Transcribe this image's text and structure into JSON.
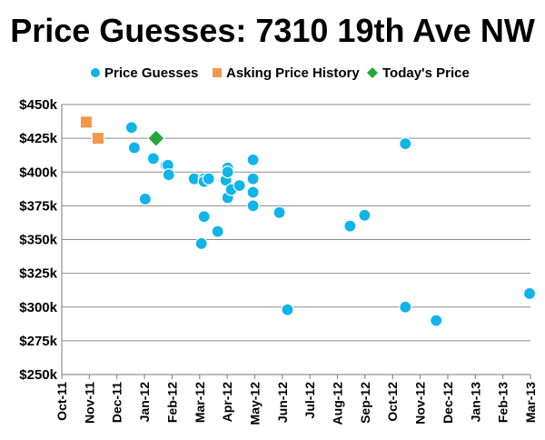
{
  "chart_data": {
    "type": "scatter",
    "title": "Price Guesses: 7310 19th Ave NW",
    "xlabel": "",
    "ylabel": "",
    "x_axis": {
      "type": "date",
      "min": "2011-10-01",
      "max": "2013-03-01",
      "tick_labels": [
        "Oct-11",
        "Nov-11",
        "Dec-11",
        "Jan-12",
        "Feb-12",
        "Mar-12",
        "Apr-12",
        "May-12",
        "Jun-12",
        "Jul-12",
        "Aug-12",
        "Sep-12",
        "Oct-12",
        "Nov-12",
        "Dec-12",
        "Jan-13",
        "Feb-13",
        "Mar-13"
      ]
    },
    "y_axis": {
      "min": 250000,
      "max": 450000,
      "step": 25000,
      "tick_labels": [
        "$250k",
        "$275k",
        "$300k",
        "$325k",
        "$350k",
        "$375k",
        "$400k",
        "$425k",
        "$450k"
      ]
    },
    "grid": {
      "horizontal": true,
      "vertical": false
    },
    "legend_position": "top",
    "series": [
      {
        "name": "Price Guesses",
        "marker": "circle",
        "color": "#0fb4e8",
        "points": [
          {
            "x": "2011-12-17",
            "y": 433000
          },
          {
            "x": "2011-12-20",
            "y": 418000
          },
          {
            "x": "2012-01-01",
            "y": 380000
          },
          {
            "x": "2012-01-10",
            "y": 410000
          },
          {
            "x": "2012-01-24",
            "y": 405000
          },
          {
            "x": "2012-01-26",
            "y": 405000
          },
          {
            "x": "2012-01-27",
            "y": 398000
          },
          {
            "x": "2012-02-24",
            "y": 395000
          },
          {
            "x": "2012-03-03",
            "y": 347000
          },
          {
            "x": "2012-03-06",
            "y": 367000
          },
          {
            "x": "2012-03-06",
            "y": 395000
          },
          {
            "x": "2012-03-06",
            "y": 393000
          },
          {
            "x": "2012-03-11",
            "y": 395000
          },
          {
            "x": "2012-03-21",
            "y": 356000
          },
          {
            "x": "2012-03-30",
            "y": 394000
          },
          {
            "x": "2012-04-01",
            "y": 403000
          },
          {
            "x": "2012-04-01",
            "y": 400000
          },
          {
            "x": "2012-04-01",
            "y": 381000
          },
          {
            "x": "2012-04-05",
            "y": 387000
          },
          {
            "x": "2012-04-14",
            "y": 390000
          },
          {
            "x": "2012-04-29",
            "y": 409000
          },
          {
            "x": "2012-04-29",
            "y": 395000
          },
          {
            "x": "2012-04-29",
            "y": 385000
          },
          {
            "x": "2012-04-29",
            "y": 375000
          },
          {
            "x": "2012-05-28",
            "y": 370000
          },
          {
            "x": "2012-06-06",
            "y": 298000
          },
          {
            "x": "2012-08-14",
            "y": 360000
          },
          {
            "x": "2012-08-30",
            "y": 368000
          },
          {
            "x": "2012-10-14",
            "y": 421000
          },
          {
            "x": "2012-10-14",
            "y": 300000
          },
          {
            "x": "2012-11-17",
            "y": 290000
          },
          {
            "x": "2013-02-28",
            "y": 310000
          }
        ]
      },
      {
        "name": "Asking Price History",
        "marker": "square",
        "color": "#f5974a",
        "points": [
          {
            "x": "2011-10-28",
            "y": 437000
          },
          {
            "x": "2011-11-10",
            "y": 425000
          }
        ]
      },
      {
        "name": "Today's Price",
        "marker": "diamond",
        "color": "#22a83a",
        "points": [
          {
            "x": "2012-01-13",
            "y": 425000
          }
        ]
      }
    ]
  }
}
